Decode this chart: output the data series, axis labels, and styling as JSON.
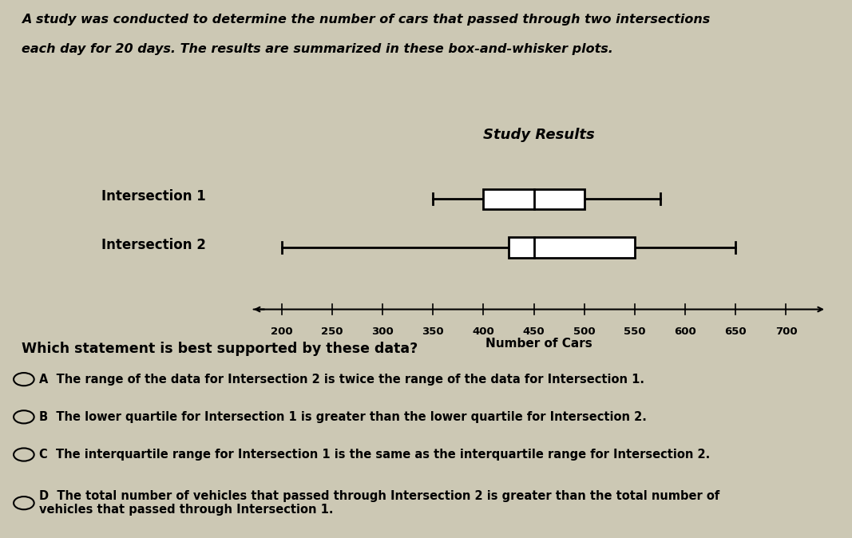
{
  "title": "Study Results",
  "xlabel": "Number of Cars",
  "background_color": "#ccc8b4",
  "xlim": [
    170,
    740
  ],
  "xticks": [
    200,
    250,
    300,
    350,
    400,
    450,
    500,
    550,
    600,
    650,
    700
  ],
  "intersection1": {
    "label": "Intersection 1",
    "min": 350,
    "q1": 400,
    "median": 450,
    "q3": 500,
    "max": 575
  },
  "intersection2": {
    "label": "Intersection 2",
    "min": 200,
    "q1": 425,
    "median": 450,
    "q3": 550,
    "max": 650
  },
  "preamble_line1": "A study was conducted to determine the number of cars that passed through two intersections",
  "preamble_line2": "each day for 20 days. The results are summarized in these box-and-whisker plots.",
  "question": "Which statement is best supported by these data?",
  "choices": [
    [
      "A",
      "The range of the data for Intersection 2 is twice the range of the data for Intersection 1."
    ],
    [
      "B",
      "The lower quartile for Intersection 1 is greater than the lower quartile for Intersection 2."
    ],
    [
      "C",
      "The interquartile range for Intersection 1 is the same as the interquartile range for Intersection 2."
    ],
    [
      "D",
      "The total number of vehicles that passed through Intersection 2 is greater than the total number of\nvehicles that passed through Intersection 1."
    ]
  ]
}
